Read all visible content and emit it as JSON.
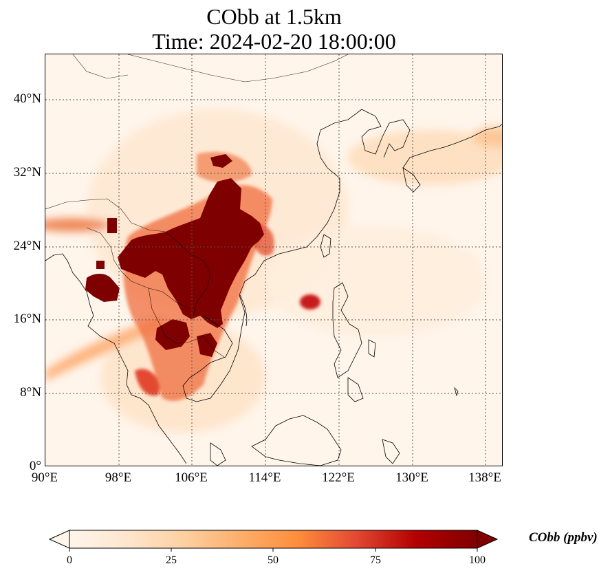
{
  "title_line1": "CObb at 1.5km",
  "title_line2": "Time: 2024-02-20 18:00:00",
  "map": {
    "projection": "PlateCarree",
    "lon_range": [
      90,
      139.5
    ],
    "lat_range": [
      0,
      44.5
    ],
    "gridlines": "dotted",
    "lat_ticks": [
      "0°",
      "8°N",
      "16°N",
      "24°N",
      "32°N",
      "40°N"
    ],
    "lon_ticks": [
      "90°E",
      "98°E",
      "106°E",
      "114°E",
      "122°E",
      "130°E",
      "138°E"
    ],
    "field_variable": "CObb",
    "colormap": "OrRd",
    "background_color": "#fff5eb",
    "plume_max_color": "#7f0000",
    "features": [
      "coastlines",
      "country borders"
    ]
  },
  "colorbar": {
    "label": "CObb (ppbv)",
    "ticks": [
      "0",
      "25",
      "50",
      "75",
      "100"
    ],
    "min": 0,
    "max": 100,
    "extend": "both",
    "colors": [
      "#fff5eb",
      "#fee6ce",
      "#fdd0a2",
      "#fdae6b",
      "#fd8d3c",
      "#e34a33",
      "#b30000",
      "#7f0000"
    ]
  }
}
